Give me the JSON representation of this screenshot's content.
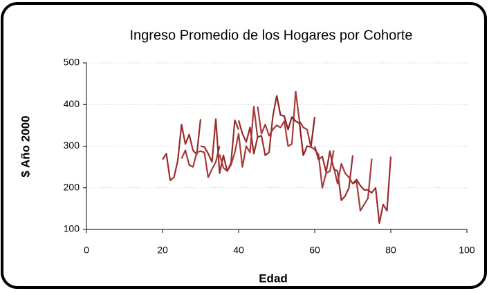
{
  "chart_data": {
    "type": "line",
    "title": "Ingreso Promedio de los Hogares por Cohorte",
    "x_label": "Edad",
    "y_label": "$ Año 2000",
    "xlim": [
      0,
      100
    ],
    "xticks": [
      0,
      20,
      40,
      60,
      80,
      100
    ],
    "ylim": [
      100,
      500
    ],
    "yticks": [
      100,
      200,
      300,
      400,
      500
    ],
    "grid": true,
    "series": [
      {
        "color": "#9b2c2c",
        "x": [
          20,
          21,
          22,
          23,
          24,
          25,
          26,
          27,
          28,
          29,
          30
        ],
        "values": [
          268,
          282,
          218,
          225,
          265,
          352,
          305,
          328,
          290,
          280,
          365
        ]
      },
      {
        "color": "#a63a3a",
        "x": [
          25,
          26,
          27,
          28,
          29,
          30,
          31,
          32,
          33,
          34,
          35
        ],
        "values": [
          270,
          290,
          255,
          250,
          285,
          288,
          285,
          225,
          245,
          262,
          300
        ]
      },
      {
        "color": "#9b2c2c",
        "x": [
          30,
          31,
          32,
          33,
          34,
          35,
          36,
          37,
          38,
          39,
          40
        ],
        "values": [
          300,
          298,
          282,
          262,
          365,
          235,
          278,
          240,
          260,
          362,
          340
        ]
      },
      {
        "color": "#a63a3a",
        "x": [
          35,
          36,
          37,
          38,
          39,
          40,
          41,
          42,
          43,
          44,
          45
        ],
        "values": [
          280,
          248,
          240,
          255,
          285,
          330,
          250,
          300,
          285,
          395,
          320
        ]
      },
      {
        "color": "#9b2c2c",
        "x": [
          40,
          41,
          42,
          43,
          44,
          45,
          46,
          47,
          48,
          49,
          50
        ],
        "values": [
          362,
          330,
          310,
          345,
          282,
          322,
          325,
          278,
          285,
          372,
          420
        ]
      },
      {
        "color": "#a63a3a",
        "x": [
          45,
          46,
          47,
          48,
          49,
          50,
          51,
          52,
          53,
          54,
          55
        ],
        "values": [
          395,
          330,
          352,
          325,
          340,
          350,
          345,
          360,
          300,
          305,
          432
        ]
      },
      {
        "color": "#8b2020",
        "x": [
          50,
          51,
          52,
          53,
          54,
          55,
          56,
          57,
          58,
          59,
          60
        ],
        "values": [
          422,
          375,
          372,
          340,
          370,
          360,
          355,
          278,
          300,
          298,
          370
        ]
      },
      {
        "color": "#a63a3a",
        "x": [
          55,
          56,
          57,
          58,
          59,
          60,
          61,
          62,
          63,
          64,
          65
        ],
        "values": [
          432,
          360,
          345,
          340,
          298,
          292,
          280,
          200,
          235,
          240,
          290
        ]
      },
      {
        "color": "#9b2c2c",
        "x": [
          60,
          61,
          62,
          63,
          64,
          65,
          66,
          67,
          68,
          69,
          70
        ],
        "values": [
          300,
          268,
          275,
          238,
          288,
          245,
          240,
          170,
          180,
          200,
          278
        ]
      },
      {
        "color": "#a63a3a",
        "x": [
          65,
          66,
          67,
          68,
          69,
          70,
          71,
          72,
          73,
          74,
          75
        ],
        "values": [
          250,
          210,
          258,
          235,
          225,
          210,
          215,
          145,
          160,
          175,
          270
        ]
      },
      {
        "color": "#9b2c2c",
        "x": [
          70,
          71,
          72,
          73,
          74,
          75,
          76,
          77,
          78,
          79,
          80
        ],
        "values": [
          210,
          220,
          205,
          195,
          195,
          188,
          200,
          115,
          160,
          145,
          275
        ]
      }
    ]
  }
}
